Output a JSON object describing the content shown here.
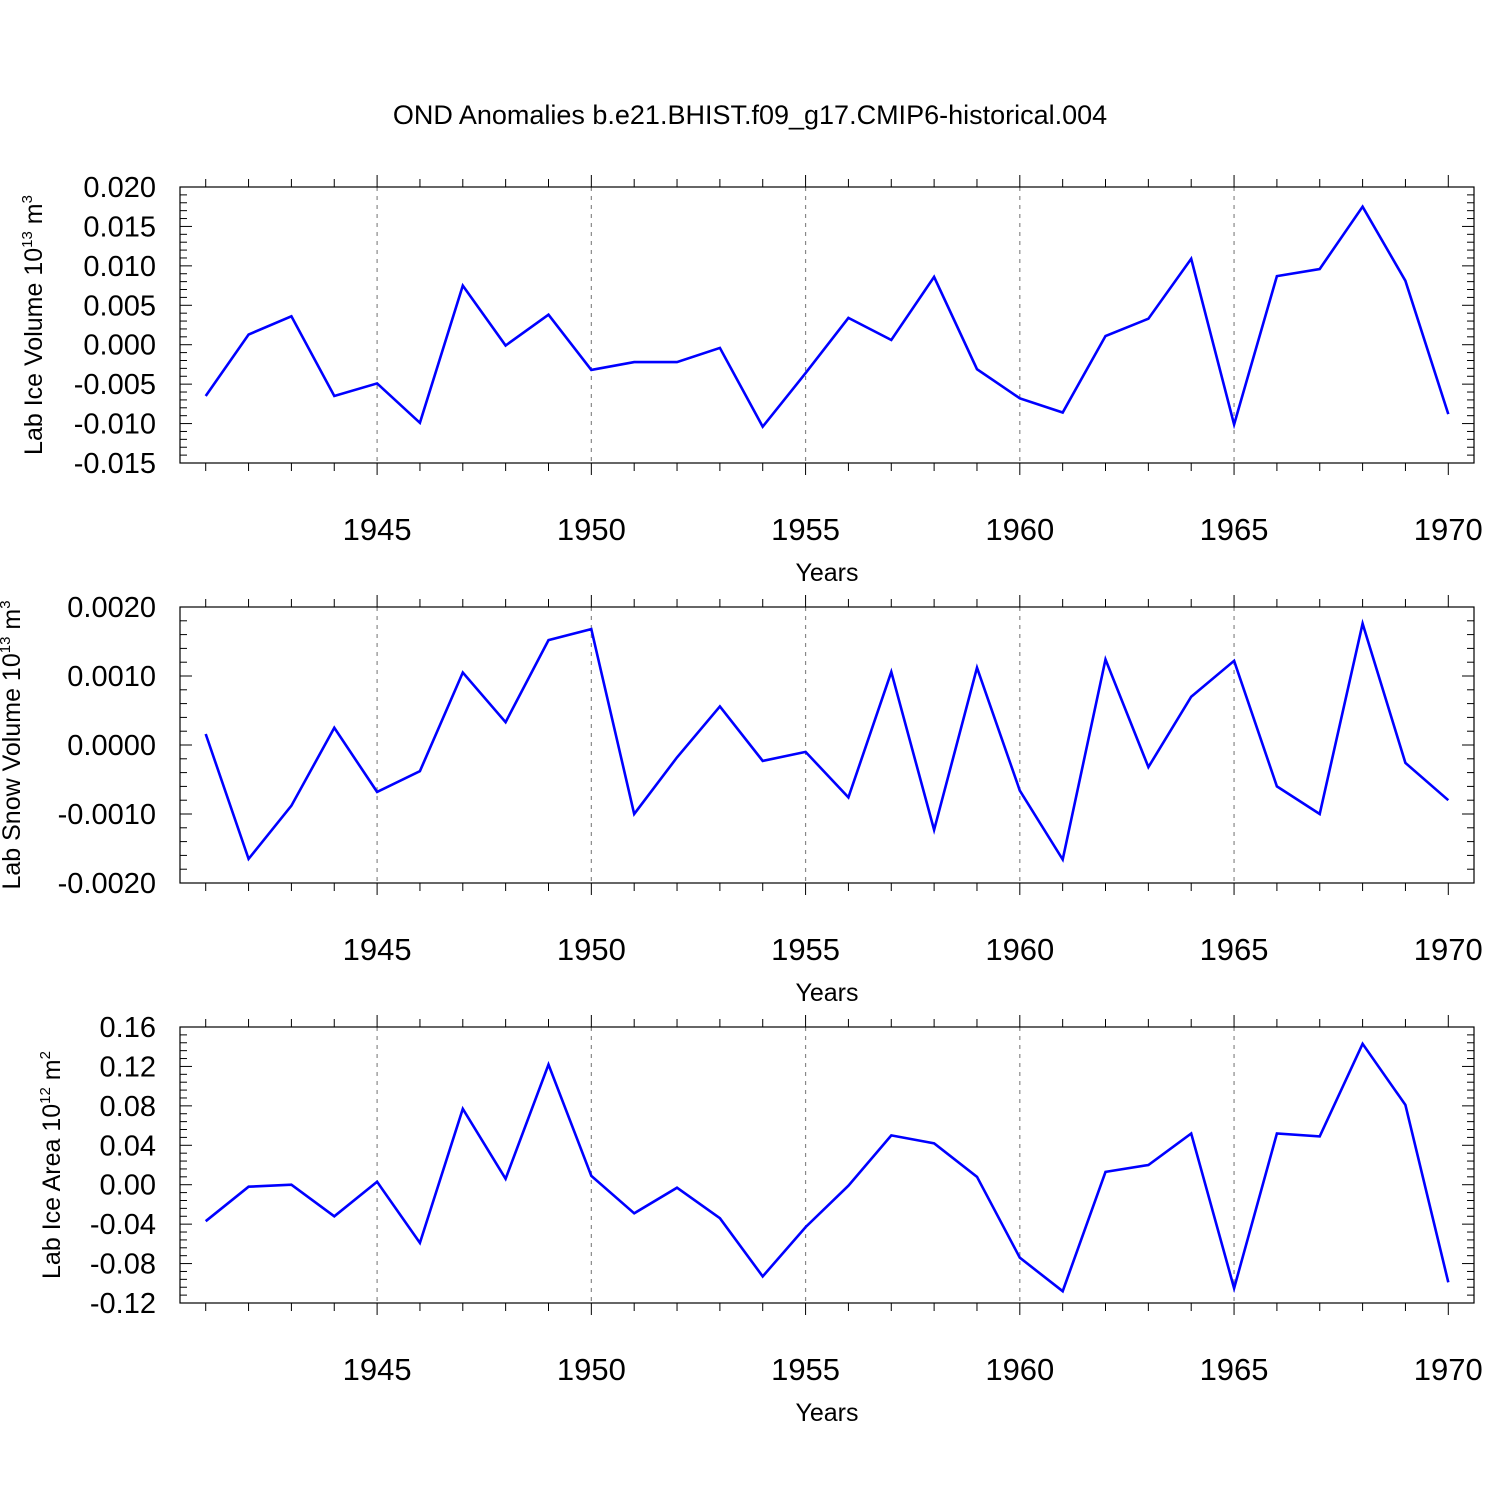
{
  "title": "OND Anomalies b.e21.BHIST.f09_g17.CMIP6-historical.004",
  "colors": {
    "line": "#0000ff",
    "axis": "#000000",
    "grid": "#888888"
  },
  "chart_data": [
    {
      "type": "line",
      "xlabel": "Years",
      "ylabel": {
        "text": "Lab Ice Volume 10",
        "exp": "13",
        "unit": " m",
        "unit_exp": "3"
      },
      "xlim": [
        1941,
        1971
      ],
      "ylim": [
        -0.015,
        0.02
      ],
      "x_ticks": [
        "1945",
        "1950",
        "1955",
        "1960",
        "1965",
        "1970"
      ],
      "y_ticks": [
        "-0.015",
        "-0.010",
        "-0.005",
        "0.000",
        "0.005",
        "0.010",
        "0.015",
        "0.020"
      ],
      "x": [
        1941,
        1942,
        1943,
        1944,
        1945,
        1946,
        1947,
        1948,
        1949,
        1950,
        1951,
        1952,
        1953,
        1954,
        1955,
        1956,
        1957,
        1958,
        1959,
        1960,
        1961,
        1962,
        1963,
        1964,
        1965,
        1966,
        1967,
        1968,
        1969,
        1970
      ],
      "values": [
        -0.0065,
        0.0013,
        0.0036,
        -0.0065,
        -0.0049,
        -0.0099,
        0.0075,
        -0.0001,
        0.0038,
        -0.0032,
        -0.0022,
        -0.0022,
        -0.0004,
        -0.0104,
        -0.0036,
        0.0034,
        0.0006,
        0.0086,
        -0.0031,
        -0.0068,
        -0.0086,
        0.0011,
        0.0033,
        0.0109,
        -0.0101,
        0.0087,
        0.0096,
        0.0175,
        0.0081,
        -0.0088
      ]
    },
    {
      "type": "line",
      "xlabel": "Years",
      "ylabel": {
        "text": "Lab Snow Volume 10",
        "exp": "13",
        "unit": " m",
        "unit_exp": "3"
      },
      "xlim": [
        1941,
        1971
      ],
      "ylim": [
        -0.002,
        0.002
      ],
      "x_ticks": [
        "1945",
        "1950",
        "1955",
        "1960",
        "1965",
        "1970"
      ],
      "y_ticks": [
        "-0.0020",
        "-0.0010",
        "0.0000",
        "0.0010",
        "0.0020"
      ],
      "x": [
        1941,
        1942,
        1943,
        1944,
        1945,
        1946,
        1947,
        1948,
        1949,
        1950,
        1951,
        1952,
        1953,
        1954,
        1955,
        1956,
        1957,
        1958,
        1959,
        1960,
        1961,
        1962,
        1963,
        1964,
        1965,
        1966,
        1967,
        1968,
        1969,
        1970
      ],
      "values": [
        0.00016,
        -0.00165,
        -0.00088,
        0.00025,
        -0.00068,
        -0.00038,
        0.00105,
        0.00033,
        0.00152,
        0.00168,
        -0.001,
        -0.00018,
        0.00056,
        -0.00023,
        -0.0001,
        -0.00076,
        0.00106,
        -0.00123,
        0.00112,
        -0.00066,
        -0.00166,
        0.00124,
        -0.00032,
        0.0007,
        0.00122,
        -0.0006,
        -0.001,
        0.00176,
        -0.00026,
        -0.0008
      ]
    },
    {
      "type": "line",
      "xlabel": "Years",
      "ylabel": {
        "text": "Lab Ice Area 10",
        "exp": "12",
        "unit": " m",
        "unit_exp": "2"
      },
      "xlim": [
        1941,
        1971
      ],
      "ylim": [
        -0.12,
        0.16
      ],
      "x_ticks": [
        "1945",
        "1950",
        "1955",
        "1960",
        "1965",
        "1970"
      ],
      "y_ticks": [
        "-0.12",
        "-0.08",
        "-0.04",
        "0.00",
        "0.04",
        "0.08",
        "0.12",
        "0.16"
      ],
      "x": [
        1941,
        1942,
        1943,
        1944,
        1945,
        1946,
        1947,
        1948,
        1949,
        1950,
        1951,
        1952,
        1953,
        1954,
        1955,
        1956,
        1957,
        1958,
        1959,
        1960,
        1961,
        1962,
        1963,
        1964,
        1965,
        1966,
        1967,
        1968,
        1969,
        1970
      ],
      "values": [
        -0.037,
        -0.002,
        0.0,
        -0.032,
        0.003,
        -0.059,
        0.077,
        0.006,
        0.122,
        0.009,
        -0.029,
        -0.003,
        -0.034,
        -0.093,
        -0.043,
        -0.001,
        0.05,
        0.042,
        0.008,
        -0.074,
        -0.108,
        0.013,
        0.02,
        0.052,
        -0.105,
        0.052,
        0.049,
        0.143,
        0.081,
        -0.099
      ]
    }
  ]
}
